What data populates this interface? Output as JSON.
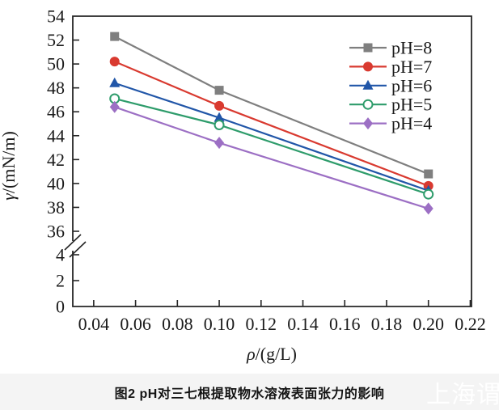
{
  "figure": {
    "caption": "图2  pH对三七根提取物水溶液表面张力的影响",
    "watermark": "上海谓载"
  },
  "chart_data": {
    "type": "line",
    "title": "",
    "xlabel": "ρ/(g/L)",
    "ylabel": "γ/(mN/m)",
    "x": [
      0.05,
      0.1,
      0.2
    ],
    "series": [
      {
        "name": "pH=8",
        "color": "#7f7f7f",
        "marker": "square",
        "fill": "filled",
        "values": [
          52.3,
          47.8,
          40.8
        ]
      },
      {
        "name": "pH=7",
        "color": "#d93a30",
        "marker": "circle",
        "fill": "filled",
        "values": [
          50.2,
          46.5,
          39.8
        ]
      },
      {
        "name": "pH=6",
        "color": "#2156a8",
        "marker": "triangle",
        "fill": "filled",
        "values": [
          48.4,
          45.5,
          39.4
        ]
      },
      {
        "name": "pH=5",
        "color": "#2e9c6b",
        "marker": "circle",
        "fill": "open",
        "values": [
          47.1,
          44.9,
          39.1
        ]
      },
      {
        "name": "pH=4",
        "color": "#9c6fc4",
        "marker": "diamond",
        "fill": "filled",
        "values": [
          46.4,
          43.4,
          37.9
        ]
      }
    ],
    "x_tick_labels": [
      "0.04",
      "0.06",
      "0.08",
      "0.10",
      "0.12",
      "0.14",
      "0.16",
      "0.18",
      "0.20",
      "0.22"
    ],
    "y_ticks_upper": [
      54,
      52,
      50,
      48,
      46,
      44,
      42,
      40,
      38,
      36
    ],
    "y_ticks_lower": [
      4,
      2,
      0
    ],
    "axis_break": true,
    "xlim": [
      0.03,
      0.2206
    ],
    "ylim_upper": [
      36,
      54
    ],
    "ylim_lower": [
      0,
      4
    ],
    "grid": false,
    "legend_position": "top-right",
    "axis_color": "#262626"
  }
}
